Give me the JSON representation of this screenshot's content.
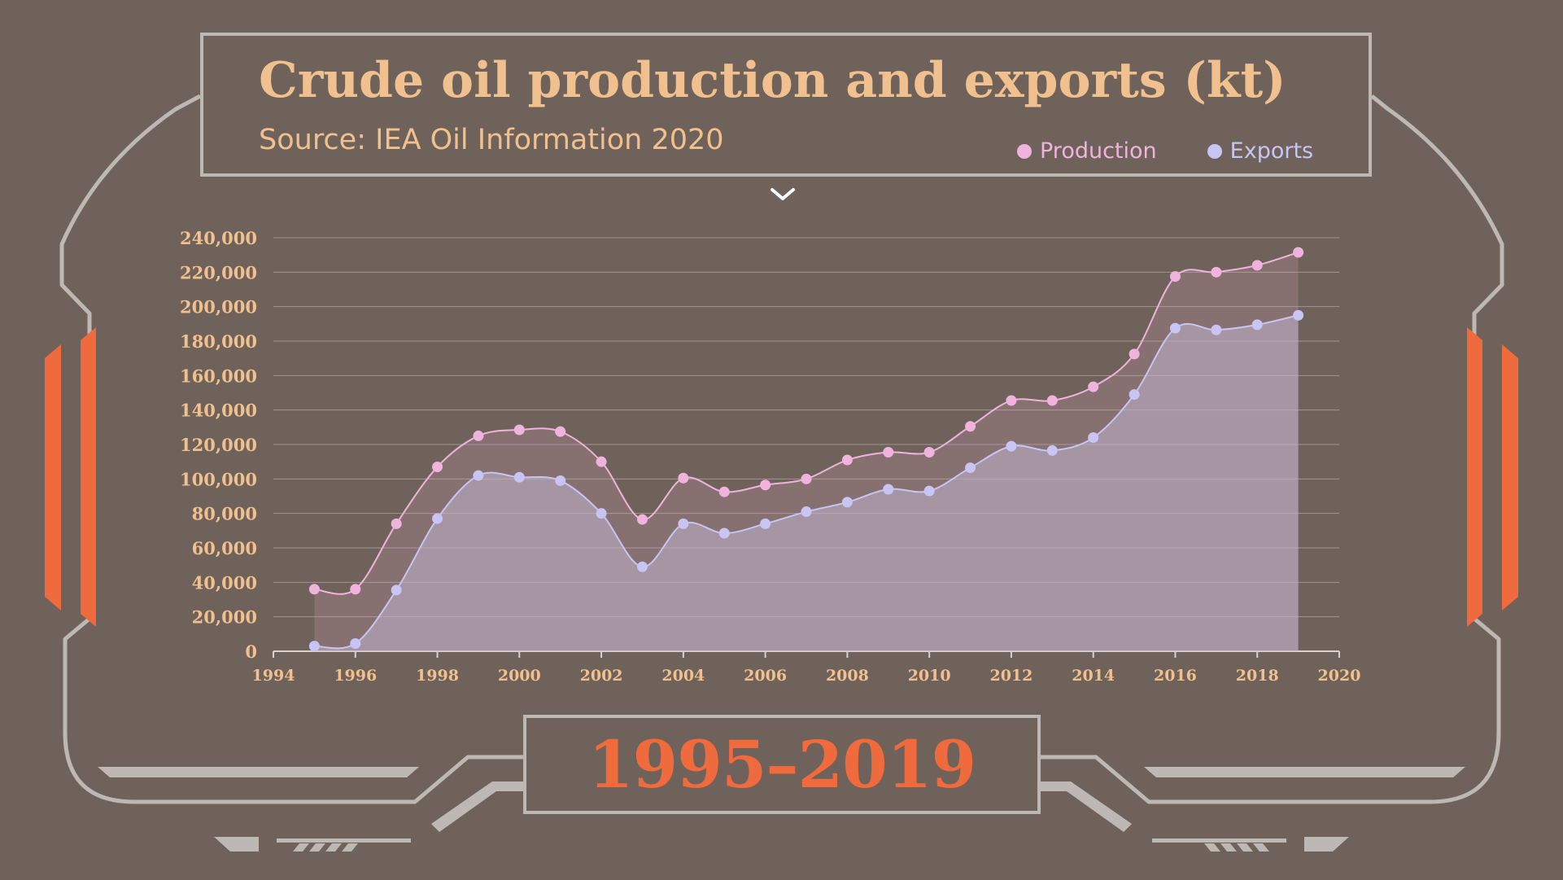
{
  "header": {
    "title": "Crude oil production and exports (kt)",
    "subtitle": "Source: IEA Oil Information 2020"
  },
  "footer": {
    "year_range": "1995–2019"
  },
  "icons": {
    "chevron": "chevron-down-icon"
  },
  "colors": {
    "background": "#6e625a",
    "frame": "#bdb8b3",
    "accent_orange": "#ef6a3c",
    "title": "#f0c08e",
    "production": "#f0b3dd",
    "exports": "#c8c4f3",
    "gridline": "#b3aaa3"
  },
  "chart_data": {
    "type": "area",
    "title": "Crude oil production and exports (kt)",
    "subtitle": "Source: IEA Oil Information 2020",
    "xlabel": "",
    "ylabel": "",
    "xlim": [
      1994,
      2020
    ],
    "ylim": [
      0,
      240000
    ],
    "x_ticks": [
      "1994",
      "1996",
      "1998",
      "2000",
      "2002",
      "2004",
      "2006",
      "2008",
      "2010",
      "2012",
      "2014",
      "2016",
      "2018",
      "2020"
    ],
    "y_ticks": [
      "0",
      "20,000",
      "40,000",
      "60,000",
      "80,000",
      "100,000",
      "120,000",
      "140,000",
      "160,000",
      "180,000",
      "200,000",
      "220,000",
      "240,000"
    ],
    "grid": true,
    "legend_position": "top-right",
    "x": [
      1995,
      1996,
      1997,
      1998,
      1999,
      2000,
      2001,
      2002,
      2003,
      2004,
      2005,
      2006,
      2007,
      2008,
      2009,
      2010,
      2011,
      2012,
      2013,
      2014,
      2015,
      2016,
      2017,
      2018,
      2019
    ],
    "series": [
      {
        "name": "Production",
        "color": "#f0b3dd",
        "values": [
          36000,
          36000,
          74000,
          107000,
          125000,
          128500,
          127500,
          110000,
          76500,
          100500,
          92500,
          96500,
          100000,
          111000,
          115500,
          115500,
          130500,
          145500,
          145500,
          153500,
          172500,
          217500,
          220000,
          224000,
          231500
        ]
      },
      {
        "name": "Exports",
        "color": "#c8c4f3",
        "values": [
          3000,
          4500,
          35500,
          77000,
          102000,
          101000,
          99000,
          80000,
          49000,
          74000,
          68500,
          74000,
          81000,
          86500,
          94000,
          93000,
          106500,
          119000,
          116500,
          124000,
          149000,
          187500,
          186500,
          189500,
          195000
        ]
      }
    ]
  }
}
